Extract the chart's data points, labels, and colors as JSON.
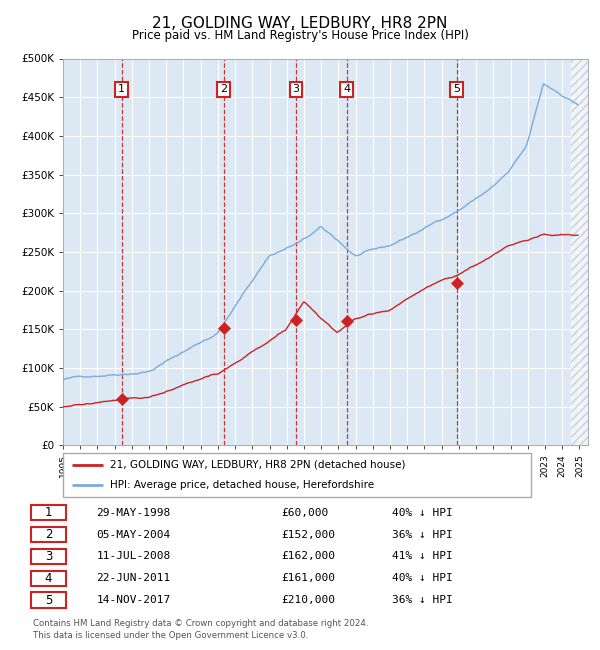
{
  "title": "21, GOLDING WAY, LEDBURY, HR8 2PN",
  "subtitle": "Price paid vs. HM Land Registry's House Price Index (HPI)",
  "ylabel_ticks": [
    "£0",
    "£50K",
    "£100K",
    "£150K",
    "£200K",
    "£250K",
    "£300K",
    "£350K",
    "£400K",
    "£450K",
    "£500K"
  ],
  "ytick_values": [
    0,
    50000,
    100000,
    150000,
    200000,
    250000,
    300000,
    350000,
    400000,
    450000,
    500000
  ],
  "xmin": 1995.0,
  "xmax": 2025.5,
  "ymin": 0,
  "ymax": 500000,
  "background_color": "#dce9f5",
  "grid_color": "#ffffff",
  "hpi_line_color": "#7aabdc",
  "price_line_color": "#cc2222",
  "sale_marker_color": "#cc2222",
  "dashed_line_color": "#cc2222",
  "transactions": [
    {
      "num": 1,
      "date_label": "29-MAY-1998",
      "price": 60000,
      "price_label": "£60,000",
      "hpi_pct": "40%",
      "x_year": 1998.41
    },
    {
      "num": 2,
      "date_label": "05-MAY-2004",
      "price": 152000,
      "price_label": "£152,000",
      "hpi_pct": "36%",
      "x_year": 2004.34
    },
    {
      "num": 3,
      "date_label": "11-JUL-2008",
      "price": 162000,
      "price_label": "£162,000",
      "hpi_pct": "41%",
      "x_year": 2008.53
    },
    {
      "num": 4,
      "date_label": "22-JUN-2011",
      "price": 161000,
      "price_label": "£161,000",
      "hpi_pct": "40%",
      "x_year": 2011.47
    },
    {
      "num": 5,
      "date_label": "14-NOV-2017",
      "price": 210000,
      "price_label": "£210,000",
      "hpi_pct": "36%",
      "x_year": 2017.87
    }
  ],
  "legend_line1": "21, GOLDING WAY, LEDBURY, HR8 2PN (detached house)",
  "legend_line2": "HPI: Average price, detached house, Herefordshire",
  "footer_line1": "Contains HM Land Registry data © Crown copyright and database right 2024.",
  "footer_line2": "This data is licensed under the Open Government Licence v3.0.",
  "xtick_years": [
    1995,
    1996,
    1997,
    1998,
    1999,
    2000,
    2001,
    2002,
    2003,
    2004,
    2005,
    2006,
    2007,
    2008,
    2009,
    2010,
    2011,
    2012,
    2013,
    2014,
    2015,
    2016,
    2017,
    2018,
    2019,
    2020,
    2021,
    2022,
    2023,
    2024,
    2025
  ],
  "hpi_keypoints_t": [
    0,
    0.167,
    0.3,
    0.4,
    0.467,
    0.5,
    0.533,
    0.567,
    0.633,
    0.7,
    0.767,
    0.833,
    0.867,
    0.9,
    0.933,
    1.0
  ],
  "hpi_keypoints_v": [
    85000,
    100000,
    150000,
    250000,
    270000,
    285000,
    268000,
    248000,
    258000,
    280000,
    305000,
    335000,
    355000,
    385000,
    465000,
    440000
  ],
  "price_keypoints_t": [
    0,
    0.1,
    0.167,
    0.3,
    0.433,
    0.467,
    0.5,
    0.533,
    0.567,
    0.633,
    0.733,
    0.767,
    0.867,
    0.933,
    1.0
  ],
  "price_keypoints_v": [
    50000,
    57000,
    60000,
    92000,
    150000,
    185000,
    162000,
    143000,
    161000,
    172000,
    210000,
    218000,
    258000,
    272000,
    270000
  ],
  "noise_seed": 42,
  "hpi_noise_scale": 1500,
  "hpi_noise_mult": 0.3,
  "price_noise_scale": 800,
  "price_noise_mult": 0.4
}
